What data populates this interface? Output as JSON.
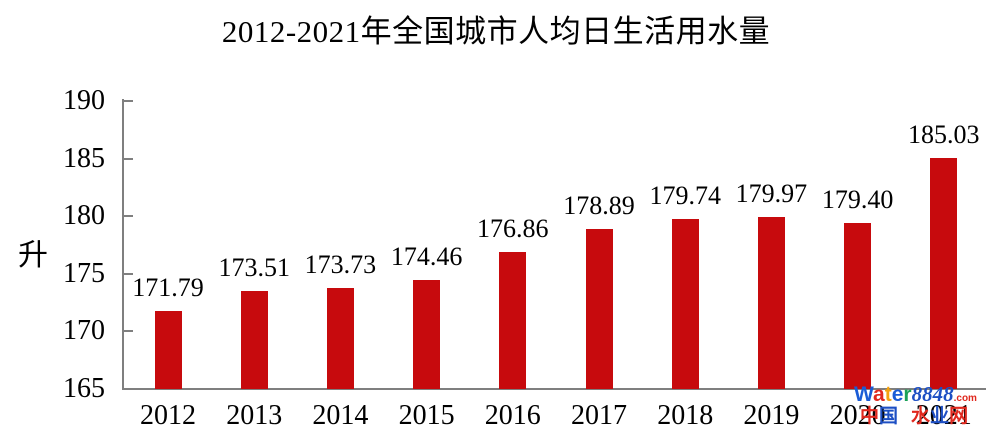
{
  "title": "2012-2021年全国城市人均日生活用水量",
  "y_axis": {
    "label": "升",
    "ticks": [
      "190",
      "185",
      "180",
      "175",
      "170",
      "165"
    ]
  },
  "chart_data": {
    "type": "bar",
    "title": "2012-2021年全国城市人均日生活用水量",
    "categories": [
      "2012",
      "2013",
      "2014",
      "2015",
      "2016",
      "2017",
      "2018",
      "2019",
      "2020",
      "2021"
    ],
    "values": [
      171.79,
      173.51,
      173.73,
      174.46,
      176.86,
      178.89,
      179.74,
      179.97,
      179.4,
      185.03
    ],
    "data_labels": [
      "171.79",
      "173.51",
      "173.73",
      "174.46",
      "176.86",
      "178.89",
      "179.74",
      "179.97",
      "179.40",
      "185.03"
    ],
    "xlabel": "",
    "ylabel": "升",
    "ylim": [
      165,
      190
    ],
    "ytick_step": 5,
    "grid": false,
    "legend": false,
    "bar_color": "#c70a0d",
    "axis_color": "#7f7f7f"
  },
  "watermark": {
    "brand": [
      {
        "ch": "W",
        "color": "#1a5cd6"
      },
      {
        "ch": "a",
        "color": "#e0281e"
      },
      {
        "ch": "t",
        "color": "#f5a10d"
      },
      {
        "ch": "e",
        "color": "#1a5cd6"
      },
      {
        "ch": "r",
        "color": "#1ba158"
      }
    ],
    "brand_suffix": {
      "text": "8848",
      "color": "#1d4fc4"
    },
    "tld": {
      "text": ".com",
      "color": "#e0281e"
    },
    "tagline": [
      {
        "ch": "中",
        "color": "#e0281e"
      },
      {
        "ch": "国",
        "color": "#1d4fc4"
      },
      {
        "ch": "水",
        "color": "#e0281e"
      },
      {
        "ch": "业",
        "color": "#1d4fc4"
      },
      {
        "ch": "网",
        "color": "#e0281e"
      }
    ]
  }
}
